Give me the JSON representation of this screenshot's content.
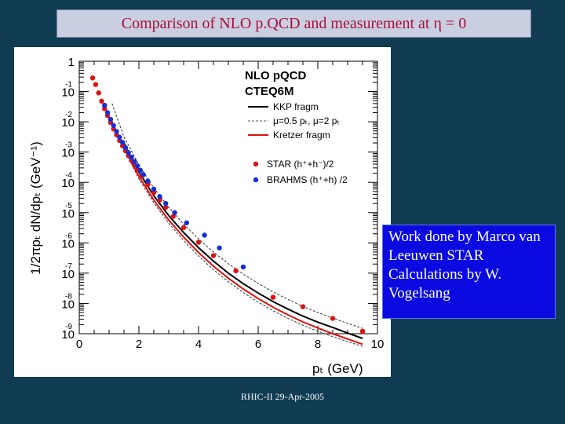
{
  "title": "Comparison of NLO p.QCD and measurement at η = 0",
  "note": "Work done by Marco van Leeuwen STAR Calculations by W. Vogelsang",
  "footer": "RHIC-II 29-Apr-2005",
  "colors": {
    "background": "#0f3c52",
    "title_text": "#a8103a",
    "note_box": "#0a0ae0",
    "star": "#e01010",
    "brahms": "#1030d8",
    "kkp": "#000000",
    "kretzer": "#e01010"
  },
  "chart_data": {
    "type": "scatter",
    "xlabel": "pₜ (GeV)",
    "ylabel": "1/2πpₜ dN/dpₜ (GeV⁻¹)",
    "xlim": [
      0,
      10
    ],
    "ylim": [
      1e-09,
      1
    ],
    "log_y": true,
    "grid": false,
    "legend_position": "top-right",
    "x_ticks": [
      "0",
      "2",
      "4",
      "6",
      "8",
      "10"
    ],
    "y_ticks": [
      {
        "value": 1,
        "base": "1",
        "exp": ""
      },
      {
        "value": 0.1,
        "base": "10",
        "exp": "-1"
      },
      {
        "value": 0.01,
        "base": "10",
        "exp": "-2"
      },
      {
        "value": 0.001,
        "base": "10",
        "exp": "-3"
      },
      {
        "value": 0.0001,
        "base": "10",
        "exp": "-4"
      },
      {
        "value": 1e-05,
        "base": "10",
        "exp": "-5"
      },
      {
        "value": 1e-06,
        "base": "10",
        "exp": "-6"
      },
      {
        "value": 1e-07,
        "base": "10",
        "exp": "-7"
      },
      {
        "value": 1e-08,
        "base": "10",
        "exp": "-8"
      },
      {
        "value": 1e-09,
        "base": "10",
        "exp": "-9"
      }
    ],
    "legend": {
      "heading1": "NLO pQCD",
      "heading2": "CTEQ6M",
      "kkp": "KKP fragm",
      "scale": "μ=0.5 pₜ, μ=2 pₜ",
      "kretzer": "Kretzer fragm",
      "star": "STAR (h⁺+h⁻)/2",
      "brahms": "BRAHMS (h⁺+h) /2"
    },
    "series": [
      {
        "name": "STAR (h⁺+h⁻)/2",
        "type": "scatter",
        "x": [
          0.45,
          0.55,
          0.65,
          0.75,
          0.85,
          0.95,
          1.05,
          1.15,
          1.25,
          1.35,
          1.45,
          1.55,
          1.65,
          1.75,
          1.85,
          1.95,
          2.1,
          2.3,
          2.5,
          2.7,
          2.9,
          3.15,
          3.5,
          4.0,
          4.5,
          5.25,
          6.5,
          7.5,
          8.5,
          9.5
        ],
        "y": [
          0.28,
          0.17,
          0.09,
          0.048,
          0.027,
          0.016,
          0.0095,
          0.0058,
          0.0037,
          0.0024,
          0.0016,
          0.0011,
          0.00075,
          0.00052,
          0.00037,
          0.00026,
          0.00016,
          8.5e-05,
          4.6e-05,
          2.6e-05,
          1.5e-05,
          7.5e-06,
          3.2e-06,
          1.05e-06,
          3.8e-07,
          1.2e-07,
          1.6e-08,
          7.8e-09,
          3.2e-09,
          1.2e-09
        ]
      },
      {
        "name": "BRAHMS (h⁺+h) /2",
        "type": "scatter",
        "x": [
          0.85,
          0.95,
          1.05,
          1.15,
          1.25,
          1.35,
          1.45,
          1.55,
          1.65,
          1.75,
          1.85,
          1.95,
          2.05,
          2.15,
          2.3,
          2.5,
          2.7,
          2.9,
          3.2,
          3.6,
          4.2,
          4.7,
          5.5
        ],
        "y": [
          0.035,
          0.02,
          0.012,
          0.0075,
          0.0048,
          0.0031,
          0.0021,
          0.0014,
          0.00096,
          0.00068,
          0.00049,
          0.00035,
          0.00025,
          0.00018,
          0.00011,
          6e-05,
          3.4e-05,
          2e-05,
          1e-05,
          4.6e-06,
          1.8e-06,
          6.8e-07,
          1.6e-07
        ]
      },
      {
        "name": "KKP fragm",
        "type": "line",
        "x": [
          1.5,
          1.75,
          2.0,
          2.5,
          3.0,
          3.5,
          4.0,
          4.5,
          5.0,
          5.5,
          6.0,
          6.5,
          7.0,
          7.5,
          8.0,
          8.5,
          9.0,
          9.5
        ],
        "y": [
          0.002,
          0.00062,
          0.00022,
          3.6e-05,
          8e-06,
          2.2e-06,
          6.9e-07,
          2.5e-07,
          1e-07,
          4.5e-08,
          2.2e-08,
          1.15e-08,
          6.5e-09,
          3.8e-09,
          2.4e-09,
          1.6e-09,
          1.05e-09,
          7e-10
        ]
      },
      {
        "name": "μ=0.5 pₜ, μ=2 pₜ",
        "type": "band",
        "x": [
          1.1,
          1.5,
          2.0,
          2.5,
          3.0,
          3.5,
          4.0,
          4.5,
          5.0,
          5.5,
          6.0,
          6.5,
          7.0,
          7.5,
          8.0,
          8.5,
          9.0,
          9.5
        ],
        "upper": [
          0.04,
          0.0032,
          0.00038,
          6.5e-05,
          1.5e-05,
          4.2e-06,
          1.35e-06,
          5e-07,
          2.05e-07,
          9.3e-08,
          4.6e-08,
          2.4e-08,
          1.35e-08,
          8e-09,
          5e-09,
          3.3e-09,
          2.2e-09,
          1.5e-09
        ],
        "lower": [
          0.011,
          0.0013,
          0.00013,
          2.1e-05,
          4.5e-06,
          1.2e-06,
          3.7e-07,
          1.3e-07,
          5.2e-08,
          2.3e-08,
          1.1e-08,
          5.7e-09,
          3.2e-09,
          1.9e-09,
          1.2e-09,
          8e-10,
          5.5e-10,
          3.8e-10
        ]
      },
      {
        "name": "Kretzer fragm",
        "type": "line",
        "x": [
          1.5,
          1.75,
          2.0,
          2.5,
          3.0,
          3.5,
          4.0,
          4.5,
          5.0,
          5.5,
          6.0,
          6.5,
          7.0,
          7.5,
          8.0,
          8.5,
          9.0,
          9.5
        ],
        "y": [
          0.0015,
          0.00046,
          0.00016,
          2.6e-05,
          5.7e-06,
          1.55e-06,
          4.8e-07,
          1.7e-07,
          6.8e-08,
          3e-08,
          1.45e-08,
          7.5e-09,
          4.2e-09,
          2.45e-09,
          1.55e-09,
          1e-09,
          6.7e-10,
          4.5e-10
        ]
      }
    ]
  }
}
